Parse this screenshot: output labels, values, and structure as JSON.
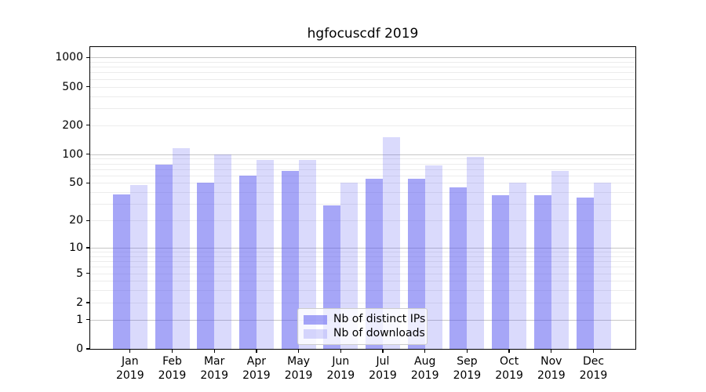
{
  "figure_title": "hgfocuscdf 2019",
  "legend": {
    "items": [
      {
        "label": "Nb of distinct IPs",
        "color": "rgba(85,85,240,0.52)"
      },
      {
        "label": "Nb of downloads",
        "color": "rgba(85,85,240,0.22)"
      }
    ]
  },
  "colors": {
    "bar_ips": "rgba(85,85,240,0.52)",
    "bar_ips_flat": "#a6a6f7",
    "bar_downloads": "rgba(85,85,240,0.22)",
    "bar_downloads_flat": "#dadafb",
    "grid_major": "#c6c6c6",
    "grid_minor": "#ececec",
    "axis": "#000000",
    "legend_border": "#cccccc"
  },
  "chart_data": {
    "type": "bar",
    "title": "hgfocuscdf 2019",
    "categories": [
      {
        "month": "Jan",
        "year": "2019"
      },
      {
        "month": "Feb",
        "year": "2019"
      },
      {
        "month": "Mar",
        "year": "2019"
      },
      {
        "month": "Apr",
        "year": "2019"
      },
      {
        "month": "May",
        "year": "2019"
      },
      {
        "month": "Jun",
        "year": "2019"
      },
      {
        "month": "Jul",
        "year": "2019"
      },
      {
        "month": "Aug",
        "year": "2019"
      },
      {
        "month": "Sep",
        "year": "2019"
      },
      {
        "month": "Oct",
        "year": "2019"
      },
      {
        "month": "Nov",
        "year": "2019"
      },
      {
        "month": "Dec",
        "year": "2019"
      }
    ],
    "series": [
      {
        "name": "Nb of distinct IPs",
        "values": [
          38,
          78,
          50,
          60,
          67,
          29,
          55,
          55,
          45,
          37,
          37,
          35
        ]
      },
      {
        "name": "Nb of downloads",
        "values": [
          48,
          116,
          100,
          88,
          88,
          50,
          150,
          77,
          94,
          50,
          67,
          50
        ]
      }
    ],
    "xlabel": "",
    "ylabel": "",
    "y_axis": {
      "scale": "log10(1+x)",
      "ticks": [
        0,
        1,
        2,
        5,
        10,
        20,
        50,
        100,
        200,
        500,
        1000
      ],
      "major_gridlines": [
        1,
        10,
        100,
        1000
      ],
      "minor_gridlines": [
        2,
        3,
        4,
        5,
        6,
        7,
        8,
        9,
        20,
        30,
        40,
        50,
        60,
        70,
        80,
        90,
        200,
        300,
        400,
        500,
        600,
        700,
        800,
        900
      ],
      "top_value": 1270
    },
    "grid": true,
    "legend_position": "lower center-right inside plot"
  }
}
